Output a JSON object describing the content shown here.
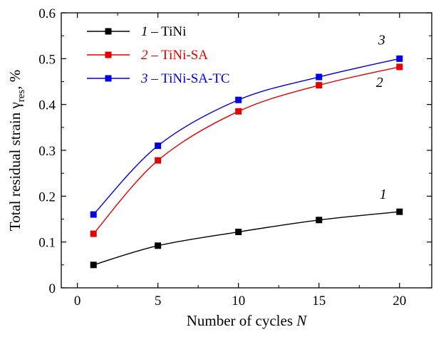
{
  "chart_data": {
    "type": "line",
    "title": "",
    "xlabel": {
      "text": "Number of cycles ",
      "var": "N"
    },
    "ylabel": {
      "pre": "Total residual strain γ",
      "sub": "res",
      "post": ", %"
    },
    "xlim": [
      -1,
      22
    ],
    "ylim": [
      0,
      0.6
    ],
    "xticks": [
      "0",
      "5",
      "10",
      "15",
      "20"
    ],
    "yticks": [
      "0",
      "0.1",
      "0.2",
      "0.3",
      "0.4",
      "0.5",
      "0.6"
    ],
    "grid": false,
    "legend_position": "top-left",
    "series": [
      {
        "name": "TiNi",
        "number": "1",
        "curve_label": "1",
        "color": "#000000",
        "x": [
          1,
          5,
          10,
          15,
          20
        ],
        "values": [
          0.05,
          0.092,
          0.122,
          0.148,
          0.166
        ]
      },
      {
        "name": "TiNi-SA",
        "number": "2",
        "curve_label": "2",
        "color": "#e30000",
        "x": [
          1,
          5,
          10,
          15,
          20
        ],
        "values": [
          0.118,
          0.278,
          0.385,
          0.442,
          0.482
        ]
      },
      {
        "name": "TiNi-SA-TC",
        "number": "3",
        "curve_label": "3",
        "color": "#0000e3",
        "x": [
          1,
          5,
          10,
          15,
          20
        ],
        "values": [
          0.16,
          0.31,
          0.41,
          0.46,
          0.5
        ]
      }
    ]
  }
}
